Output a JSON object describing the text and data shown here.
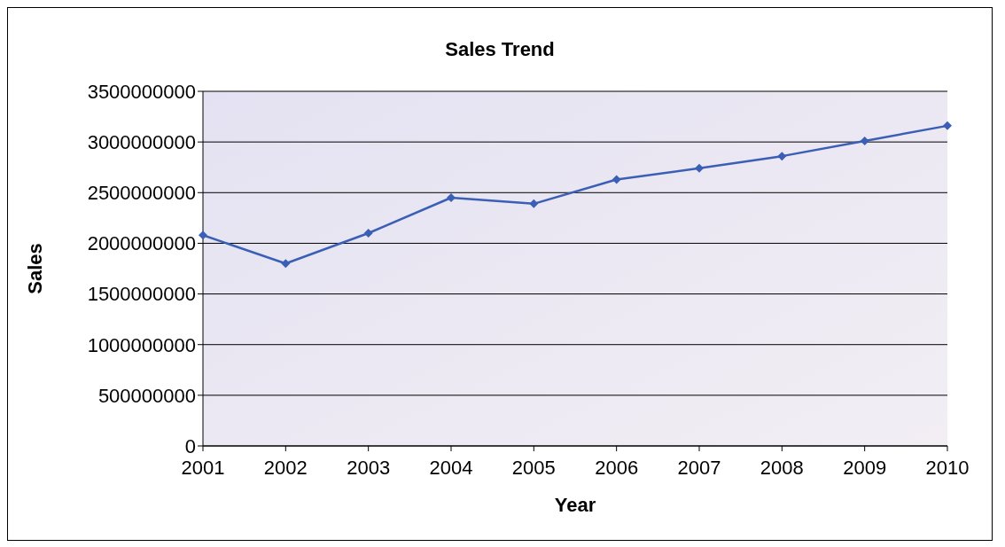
{
  "chart_data": {
    "type": "line",
    "title": "Sales Trend",
    "xlabel": "Year",
    "ylabel": "Sales",
    "categories": [
      "2001",
      "2002",
      "2003",
      "2004",
      "2005",
      "2006",
      "2007",
      "2008",
      "2009",
      "2010"
    ],
    "series": [
      {
        "color": "#3b5fb5",
        "values": [
          2080000000,
          1800000000,
          2100000000,
          2450000000,
          2390000000,
          2630000000,
          2740000000,
          2860000000,
          3010000000,
          3160000000
        ]
      }
    ],
    "ylim": [
      0,
      3500000000
    ],
    "yticks": [
      0,
      500000000,
      1000000000,
      1500000000,
      2000000000,
      2500000000,
      3000000000,
      3500000000
    ],
    "grid": "y",
    "legend": false,
    "marker": "diamond",
    "line_style": "solid"
  }
}
